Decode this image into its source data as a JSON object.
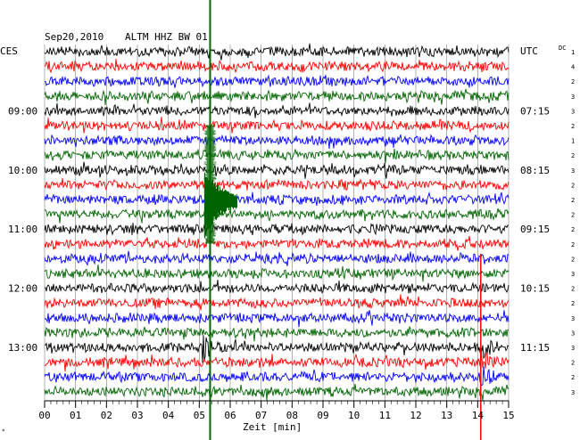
{
  "header": {
    "date": "Sep20,2010",
    "station": "ALTM HHZ BW 01",
    "left_zone": "CES",
    "right_zone": "UTC",
    "dc_label": "DC"
  },
  "colors": {
    "trace_cycle": [
      "#000000",
      "#ff0000",
      "#0000ff",
      "#006400"
    ],
    "event_line_1": "#006400",
    "event_line_2": "#ff0000",
    "grid": "#000000"
  },
  "chart_data": {
    "type": "line",
    "title": "Sep20,2010   ALTM HHZ BW 01",
    "xlabel": "Zeit [min]",
    "x_range": [
      0,
      15
    ],
    "x_ticks": [
      "00",
      "01",
      "02",
      "03",
      "04",
      "05",
      "06",
      "07",
      "08",
      "09",
      "10",
      "11",
      "12",
      "13",
      "14",
      "15"
    ],
    "rows": 24,
    "left_time_labels": [
      {
        "row": 4,
        "text": "09:00"
      },
      {
        "row": 8,
        "text": "10:00"
      },
      {
        "row": 12,
        "text": "11:00"
      },
      {
        "row": 16,
        "text": "12:00"
      },
      {
        "row": 20,
        "text": "13:00"
      }
    ],
    "right_time_labels": [
      {
        "row": 4,
        "text": "07:15"
      },
      {
        "row": 8,
        "text": "08:15"
      },
      {
        "row": 12,
        "text": "09:15"
      },
      {
        "row": 16,
        "text": "10:15"
      },
      {
        "row": 20,
        "text": "11:15"
      }
    ],
    "dc_values": [
      "1",
      "4",
      "2",
      "3",
      "3",
      "2",
      "1",
      "2",
      "3",
      "2",
      "2",
      "2",
      "2",
      "2",
      "2",
      "3",
      "2",
      "2",
      "3",
      "3",
      "3",
      "2",
      "2",
      "3"
    ],
    "events": [
      {
        "minute": 5.35,
        "color": "green",
        "rows_affected": [
          8,
          9,
          10,
          11,
          12,
          13
        ]
      },
      {
        "minute": 14.1,
        "color": "red",
        "rows_affected": [
          20,
          21,
          22
        ]
      },
      {
        "minute": 5.1,
        "color": "black",
        "rows_affected": [
          20
        ]
      }
    ]
  }
}
